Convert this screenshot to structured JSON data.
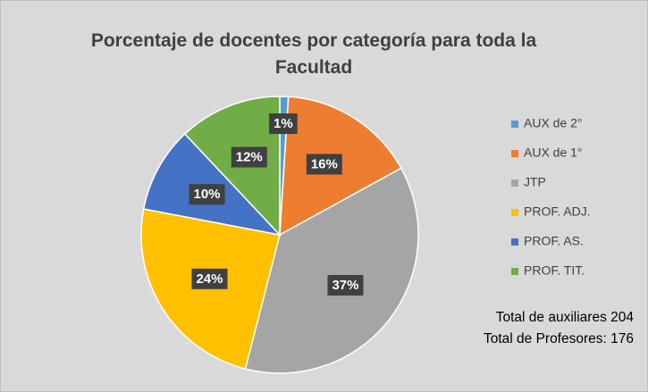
{
  "chart_data": {
    "type": "pie",
    "title": "Porcentaje de docentes por categoría para toda la Facultad",
    "categories": [
      "AUX de 2°",
      "AUX de 1°",
      "JTP",
      "PROF. ADJ.",
      "PROF. AS.",
      "PROF. TIT."
    ],
    "values": [
      1,
      16,
      37,
      24,
      10,
      12
    ],
    "value_labels": [
      "1%",
      "16%",
      "37%",
      "24%",
      "10%",
      "12%"
    ],
    "colors": [
      "#5b9bd5",
      "#ed7d31",
      "#a5a5a5",
      "#ffc000",
      "#4472c4",
      "#70ad47"
    ],
    "legend": "right",
    "annotations": [
      "Total de auxiliares 204",
      "Total de Profesores: 176"
    ]
  }
}
